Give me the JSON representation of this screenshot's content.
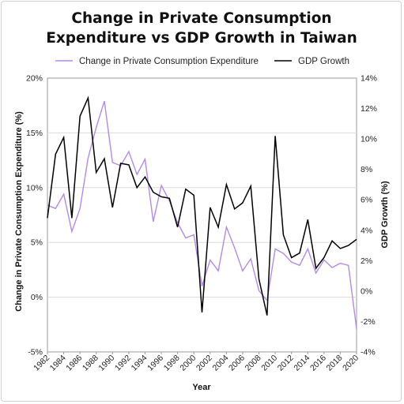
{
  "chart_data": {
    "type": "line",
    "title_line1": "Change in Private Consumption",
    "title_line2": "Expenditure vs GDP Growth in Taiwan",
    "xlabel": "Year",
    "ylabel_left": "Change in Private Consumption Expenditure (%)",
    "ylabel_right": "GDP Growth (%)",
    "x": [
      1982,
      1983,
      1984,
      1985,
      1986,
      1987,
      1988,
      1989,
      1990,
      1991,
      1992,
      1993,
      1994,
      1995,
      1996,
      1997,
      1998,
      1999,
      2000,
      2001,
      2002,
      2003,
      2004,
      2005,
      2006,
      2007,
      2008,
      2009,
      2010,
      2011,
      2012,
      2013,
      2014,
      2015,
      2016,
      2017,
      2018,
      2019,
      2020
    ],
    "x_tick_labels": [
      "1982",
      "1984",
      "1986",
      "1988",
      "1990",
      "1992",
      "1994",
      "1996",
      "1998",
      "2000",
      "2002",
      "2004",
      "2006",
      "2008",
      "2010",
      "2012",
      "2014",
      "2016",
      "2018",
      "2020"
    ],
    "ylim_left": [
      -5,
      20
    ],
    "ylim_right": [
      -4,
      14
    ],
    "y_left_tick_labels": [
      "-5%",
      "0%",
      "5%",
      "10%",
      "15%",
      "20%"
    ],
    "y_right_tick_labels": [
      "-4%",
      "-2%",
      "0%",
      "2%",
      "4%",
      "6%",
      "8%",
      "10%",
      "12%",
      "14%"
    ],
    "legend_position": "top",
    "series": [
      {
        "name": "Change in Private Consumption Expenditure",
        "axis": "left",
        "color": "#b48ae6",
        "values": [
          8.4,
          8.1,
          9.4,
          6.0,
          8.1,
          12.7,
          15.5,
          17.9,
          12.3,
          12.0,
          13.3,
          11.2,
          12.6,
          6.9,
          10.2,
          8.8,
          6.8,
          5.4,
          5.7,
          1.0,
          3.4,
          2.4,
          6.4,
          4.5,
          2.4,
          3.5,
          0.6,
          -0.3,
          4.4,
          4.0,
          3.2,
          2.9,
          4.4,
          2.2,
          3.4,
          2.7,
          3.1,
          2.9,
          -2.9
        ]
      },
      {
        "name": "GDP Growth",
        "axis": "right",
        "color": "#000000",
        "values": [
          4.8,
          9.0,
          10.1,
          4.8,
          11.5,
          12.7,
          7.8,
          8.7,
          5.5,
          8.4,
          8.3,
          6.8,
          7.5,
          6.5,
          6.2,
          6.1,
          4.2,
          6.7,
          6.3,
          -1.4,
          5.5,
          4.2,
          7.0,
          5.4,
          5.8,
          6.9,
          0.8,
          -1.6,
          10.2,
          3.7,
          2.2,
          2.5,
          4.7,
          1.5,
          2.2,
          3.3,
          2.8,
          3.0,
          3.4
        ]
      }
    ]
  }
}
